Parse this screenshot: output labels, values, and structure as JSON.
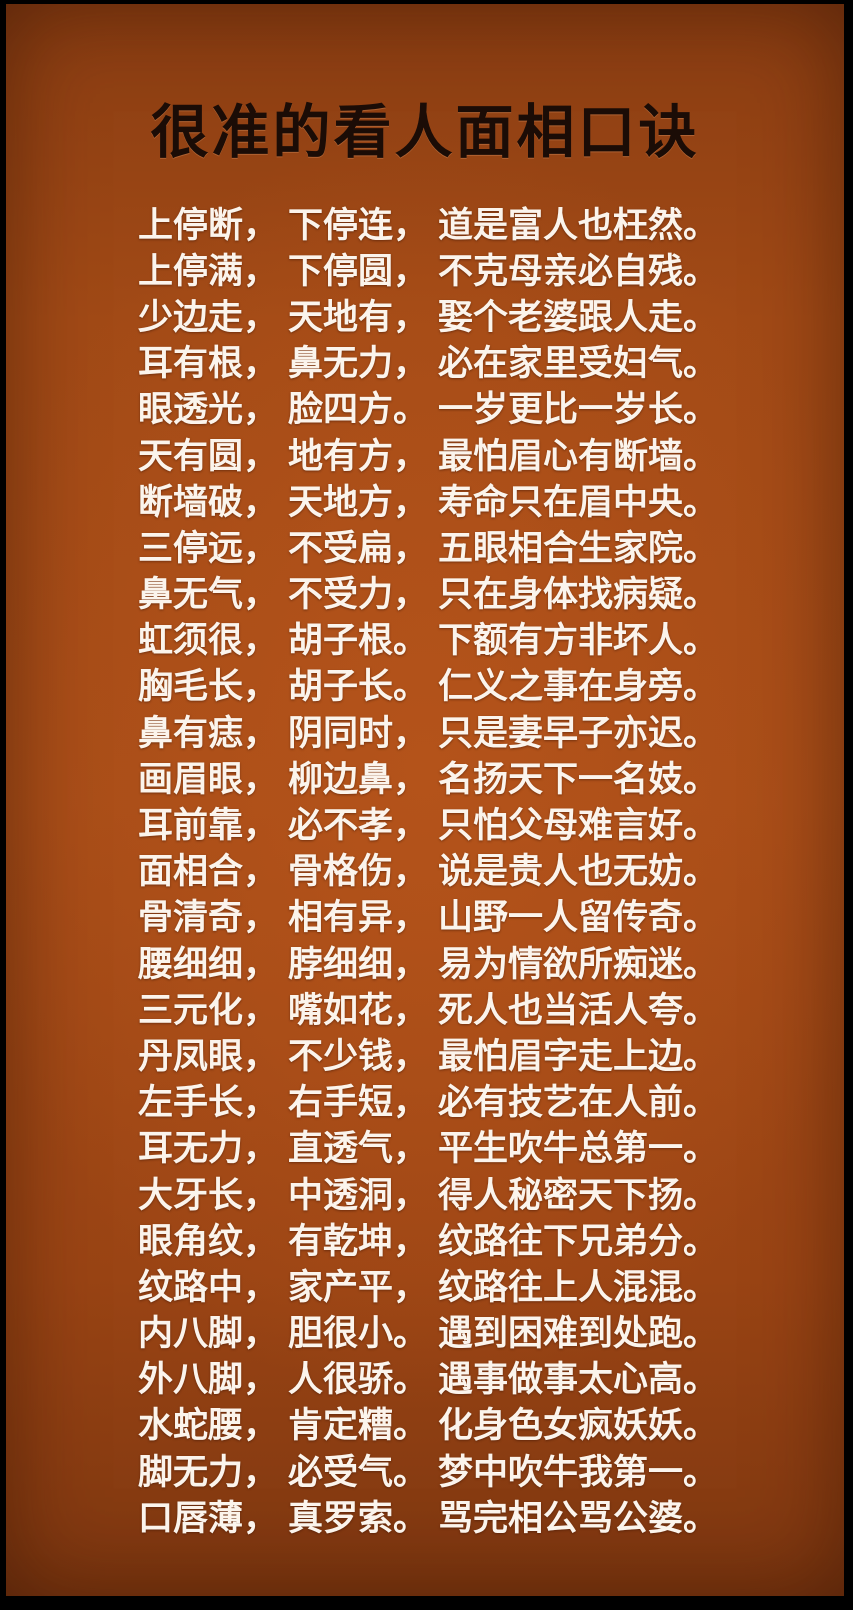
{
  "title": "很准的看人面相口诀",
  "lines": [
    [
      "上停断，",
      "下停连，",
      "道是富人也枉然。"
    ],
    [
      "上停满，",
      "下停圆，",
      "不克母亲必自残。"
    ],
    [
      "少边走，",
      "天地有，",
      "娶个老婆跟人走。"
    ],
    [
      "耳有根，",
      "鼻无力，",
      "必在家里受妇气。"
    ],
    [
      "眼透光，",
      "脸四方。",
      "一岁更比一岁长。"
    ],
    [
      "天有圆，",
      "地有方，",
      "最怕眉心有断墙。"
    ],
    [
      "断墙破，",
      "天地方，",
      "寿命只在眉中央。"
    ],
    [
      "三停远，",
      "不受扁，",
      "五眼相合生家院。"
    ],
    [
      "鼻无气，",
      "不受力，",
      "只在身体找病疑。"
    ],
    [
      "虹须很，",
      "胡子根。",
      "下额有方非坏人。"
    ],
    [
      "胸毛长，",
      "胡子长。",
      "仁义之事在身旁。"
    ],
    [
      "鼻有痣，",
      "阴同时，",
      "只是妻早子亦迟。"
    ],
    [
      "画眉眼，",
      "柳边鼻，",
      "名扬天下一名妓。"
    ],
    [
      "耳前靠，",
      "必不孝，",
      "只怕父母难言好。"
    ],
    [
      "面相合，",
      "骨格伤，",
      "说是贵人也无妨。"
    ],
    [
      "骨清奇，",
      "相有异，",
      "山野一人留传奇。"
    ],
    [
      "腰细细，",
      "脖细细，",
      "易为情欲所痴迷。"
    ],
    [
      "三元化，",
      "嘴如花，",
      "死人也当活人夸。"
    ],
    [
      "丹凤眼，",
      "不少钱，",
      "最怕眉字走上边。"
    ],
    [
      "左手长，",
      "右手短，",
      "必有技艺在人前。"
    ],
    [
      "耳无力，",
      "直透气，",
      "平生吹牛总第一。"
    ],
    [
      "大牙长，",
      "中透洞，",
      "得人秘密天下扬。"
    ],
    [
      "眼角纹，",
      "有乾坤，",
      "纹路往下兄弟分。"
    ],
    [
      "纹路中，",
      "家产平，",
      "纹路往上人混混。"
    ],
    [
      "内八脚，",
      "胆很小。",
      "遇到困难到处跑。"
    ],
    [
      "外八脚，",
      "人很骄。",
      "遇事做事太心高。"
    ],
    [
      "水蛇腰，",
      "肯定糟。",
      "化身色女疯妖妖。"
    ],
    [
      "脚无力，",
      "必受气。",
      "梦中吹牛我第一。"
    ],
    [
      "口唇薄，",
      "真罗索。",
      "骂完相公骂公婆。"
    ]
  ]
}
